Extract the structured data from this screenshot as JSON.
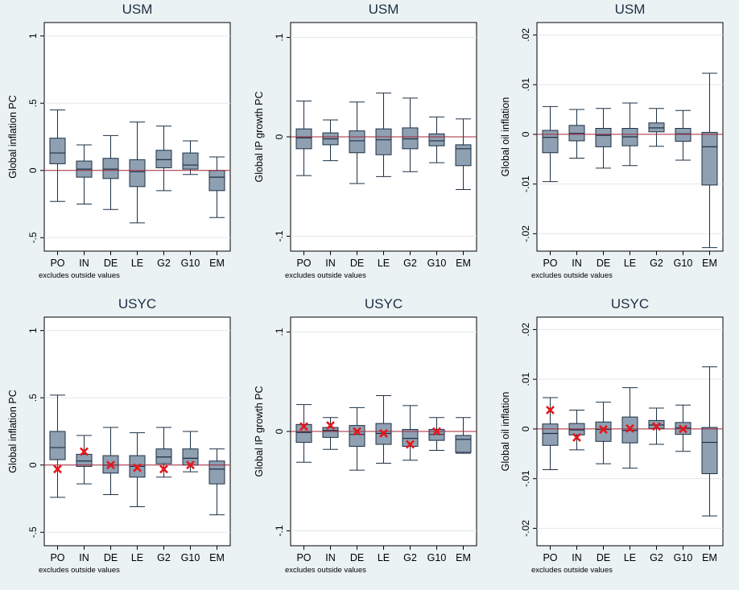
{
  "chart_data": [
    {
      "type": "box",
      "title": "USM",
      "ylabel": "Global inflation PC",
      "note": "excludes outside values",
      "categories": [
        "PO",
        "IN",
        "DE",
        "LE",
        "G2",
        "G10",
        "EM"
      ],
      "ylim": [
        -0.6,
        1.1
      ],
      "yticks": [
        -0.5,
        0,
        0.5,
        1
      ],
      "ytick_labels": [
        "-.5",
        "0",
        ".5",
        "1"
      ],
      "boxes": [
        {
          "lw": -0.23,
          "q1": 0.05,
          "med": 0.13,
          "q3": 0.24,
          "uw": 0.45
        },
        {
          "lw": -0.25,
          "q1": -0.05,
          "med": 0.01,
          "q3": 0.07,
          "uw": 0.19
        },
        {
          "lw": -0.29,
          "q1": -0.06,
          "med": 0.01,
          "q3": 0.09,
          "uw": 0.26
        },
        {
          "lw": -0.39,
          "q1": -0.12,
          "med": -0.01,
          "q3": 0.08,
          "uw": 0.36
        },
        {
          "lw": -0.15,
          "q1": 0.02,
          "med": 0.08,
          "q3": 0.15,
          "uw": 0.33
        },
        {
          "lw": -0.03,
          "q1": 0.01,
          "med": 0.04,
          "q3": 0.13,
          "uw": 0.22
        },
        {
          "lw": -0.35,
          "q1": -0.15,
          "med": -0.05,
          "q3": 0.0,
          "uw": 0.1
        }
      ],
      "markers": []
    },
    {
      "type": "box",
      "title": "USM",
      "ylabel": "Global IP growth PC",
      "note": "excludes outside values",
      "categories": [
        "PO",
        "IN",
        "DE",
        "LE",
        "G2",
        "G10",
        "EM"
      ],
      "ylim": [
        -0.115,
        0.115
      ],
      "yticks": [
        -0.1,
        0,
        0.1
      ],
      "ytick_labels": [
        "-.1",
        "0",
        ".1"
      ],
      "boxes": [
        {
          "lw": -0.039,
          "q1": -0.012,
          "med": -0.001,
          "q3": 0.008,
          "uw": 0.036
        },
        {
          "lw": -0.024,
          "q1": -0.008,
          "med": -0.002,
          "q3": 0.004,
          "uw": 0.017
        },
        {
          "lw": -0.047,
          "q1": -0.016,
          "med": -0.004,
          "q3": 0.006,
          "uw": 0.035
        },
        {
          "lw": -0.04,
          "q1": -0.018,
          "med": -0.003,
          "q3": 0.008,
          "uw": 0.044
        },
        {
          "lw": -0.035,
          "q1": -0.012,
          "med": -0.002,
          "q3": 0.009,
          "uw": 0.039
        },
        {
          "lw": -0.026,
          "q1": -0.009,
          "med": -0.004,
          "q3": 0.003,
          "uw": 0.02
        },
        {
          "lw": -0.053,
          "q1": -0.029,
          "med": -0.012,
          "q3": -0.008,
          "uw": 0.018
        }
      ],
      "markers": []
    },
    {
      "type": "box",
      "title": "USM",
      "ylabel": "Global oil inflation",
      "note": "excludes outside values",
      "categories": [
        "PO",
        "IN",
        "DE",
        "LE",
        "G2",
        "G10",
        "EM"
      ],
      "ylim": [
        -0.0235,
        0.0225
      ],
      "yticks": [
        -0.02,
        -0.01,
        0,
        0.01,
        0.02
      ],
      "ytick_labels": [
        "-.02",
        "-.01",
        "0",
        ".01",
        ".02"
      ],
      "boxes": [
        {
          "lw": -0.0095,
          "q1": -0.0037,
          "med": -0.0006,
          "q3": 0.0008,
          "uw": 0.0056
        },
        {
          "lw": -0.0048,
          "q1": -0.0013,
          "med": 0.0002,
          "q3": 0.0018,
          "uw": 0.005
        },
        {
          "lw": -0.0068,
          "q1": -0.0025,
          "med": -0.0002,
          "q3": 0.0012,
          "uw": 0.0052
        },
        {
          "lw": -0.0063,
          "q1": -0.0023,
          "med": -0.0005,
          "q3": 0.0012,
          "uw": 0.0063
        },
        {
          "lw": -0.0024,
          "q1": 0.0005,
          "med": 0.0013,
          "q3": 0.0023,
          "uw": 0.0052
        },
        {
          "lw": -0.0052,
          "q1": -0.0014,
          "med": 0.0001,
          "q3": 0.0012,
          "uw": 0.0048
        },
        {
          "lw": -0.0228,
          "q1": -0.0102,
          "med": -0.0025,
          "q3": 0.0004,
          "uw": 0.0123
        }
      ],
      "markers": []
    },
    {
      "type": "box",
      "title": "USYC",
      "ylabel": "Global inflation PC",
      "note": "excludes outside values",
      "categories": [
        "PO",
        "IN",
        "DE",
        "LE",
        "G2",
        "G10",
        "EM"
      ],
      "ylim": [
        -0.6,
        1.1
      ],
      "yticks": [
        -0.5,
        0,
        0.5,
        1
      ],
      "ytick_labels": [
        "-.5",
        "0",
        ".5",
        "1"
      ],
      "boxes": [
        {
          "lw": -0.24,
          "q1": 0.04,
          "med": 0.13,
          "q3": 0.25,
          "uw": 0.52
        },
        {
          "lw": -0.14,
          "q1": -0.01,
          "med": 0.03,
          "q3": 0.08,
          "uw": 0.22
        },
        {
          "lw": -0.22,
          "q1": -0.06,
          "med": 0.0,
          "q3": 0.07,
          "uw": 0.28
        },
        {
          "lw": -0.31,
          "q1": -0.09,
          "med": -0.01,
          "q3": 0.07,
          "uw": 0.24
        },
        {
          "lw": -0.09,
          "q1": 0.01,
          "med": 0.06,
          "q3": 0.12,
          "uw": 0.28
        },
        {
          "lw": -0.05,
          "q1": 0.0,
          "med": 0.05,
          "q3": 0.12,
          "uw": 0.25
        },
        {
          "lw": -0.37,
          "q1": -0.14,
          "med": -0.03,
          "q3": 0.03,
          "uw": 0.12
        }
      ],
      "markers": [
        -0.03,
        0.1,
        0.0,
        -0.02,
        -0.03,
        0.0,
        null
      ]
    },
    {
      "type": "box",
      "title": "USYC",
      "ylabel": "Global IP growth PC",
      "note": "excludes outside values",
      "categories": [
        "PO",
        "IN",
        "DE",
        "LE",
        "G2",
        "G10",
        "EM"
      ],
      "ylim": [
        -0.115,
        0.115
      ],
      "yticks": [
        -0.1,
        0,
        0.1
      ],
      "ytick_labels": [
        "-.1",
        "0",
        ".1"
      ],
      "boxes": [
        {
          "lw": -0.031,
          "q1": -0.011,
          "med": -0.001,
          "q3": 0.007,
          "uw": 0.027
        },
        {
          "lw": -0.018,
          "q1": -0.006,
          "med": 0.001,
          "q3": 0.004,
          "uw": 0.014
        },
        {
          "lw": -0.039,
          "q1": -0.015,
          "med": -0.003,
          "q3": 0.006,
          "uw": 0.024
        },
        {
          "lw": -0.032,
          "q1": -0.013,
          "med": -0.002,
          "q3": 0.008,
          "uw": 0.036
        },
        {
          "lw": -0.029,
          "q1": -0.015,
          "med": -0.007,
          "q3": 0.002,
          "uw": 0.026
        },
        {
          "lw": -0.019,
          "q1": -0.009,
          "med": -0.003,
          "q3": 0.002,
          "uw": 0.014
        },
        {
          "lw": -0.022,
          "q1": -0.021,
          "med": -0.008,
          "q3": -0.004,
          "uw": 0.014
        }
      ],
      "markers": [
        0.005,
        0.006,
        0.0,
        -0.002,
        -0.013,
        0.0,
        null
      ]
    },
    {
      "type": "box",
      "title": "USYC",
      "ylabel": "Global oil inflation",
      "note": "excludes outside values",
      "categories": [
        "PO",
        "IN",
        "DE",
        "LE",
        "G2",
        "G10",
        "EM"
      ],
      "ylim": [
        -0.0235,
        0.0225
      ],
      "yticks": [
        -0.02,
        -0.01,
        0,
        0.01,
        0.02
      ],
      "ytick_labels": [
        "-.02",
        "-.01",
        "0",
        ".01",
        ".02"
      ],
      "boxes": [
        {
          "lw": -0.0082,
          "q1": -0.0033,
          "med": -0.0009,
          "q3": 0.001,
          "uw": 0.0063
        },
        {
          "lw": -0.0042,
          "q1": -0.0012,
          "med": -0.0002,
          "q3": 0.0011,
          "uw": 0.0038
        },
        {
          "lw": -0.007,
          "q1": -0.0025,
          "med": -0.0001,
          "q3": 0.0014,
          "uw": 0.0054
        },
        {
          "lw": -0.0079,
          "q1": -0.0028,
          "med": -0.0003,
          "q3": 0.0024,
          "uw": 0.0083
        },
        {
          "lw": -0.0031,
          "q1": 0.0001,
          "med": 0.0008,
          "q3": 0.0017,
          "uw": 0.0042
        },
        {
          "lw": -0.0045,
          "q1": -0.0011,
          "med": 0.0002,
          "q3": 0.0013,
          "uw": 0.0048
        },
        {
          "lw": -0.0175,
          "q1": -0.009,
          "med": -0.0027,
          "q3": 0.0003,
          "uw": 0.0125
        }
      ],
      "markers": [
        0.0038,
        -0.0017,
        -0.0001,
        0.0001,
        0.0005,
        0.0,
        null
      ]
    }
  ]
}
